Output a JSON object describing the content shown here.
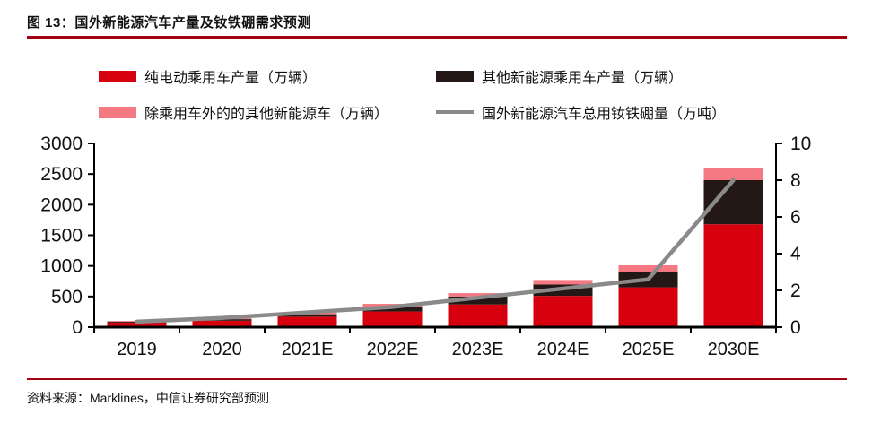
{
  "page": {
    "title": "图 13：国外新能源汽车产量及钕铁硼需求预测",
    "source": "资料来源：Marklines，中信证券研究部预测"
  },
  "colors": {
    "accent_rule": "#A30014",
    "bev_red": "#D7000F",
    "other_black": "#231815",
    "nonpv_pink": "#F47983",
    "line_gray": "#8A8A8A",
    "axis": "#000000",
    "text": "#111111"
  },
  "legend": {
    "items": [
      {
        "label": "纯电动乘用车产量（万辆）",
        "type": "bar",
        "color": "#D7000F"
      },
      {
        "label": "其他新能源乘用车产量（万辆）",
        "type": "bar",
        "color": "#231815"
      },
      {
        "label": "除乘用车外的的其他新能源车（万辆）",
        "type": "bar",
        "color": "#F47983"
      },
      {
        "label": "国外新能源汽车总用钕铁硼量（万吨）",
        "type": "line",
        "color": "#8A8A8A"
      }
    ]
  },
  "chart_data": {
    "type": "bar",
    "subtype": "stacked-bar-with-line",
    "title": "国外新能源汽车产量及钕铁硼需求预测",
    "categories": [
      "2019",
      "2020",
      "2021E",
      "2022E",
      "2023E",
      "2024E",
      "2025E",
      "2030E"
    ],
    "series": [
      {
        "name": "纯电动乘用车产量（万辆）",
        "type": "bar",
        "stack": "cars",
        "axis": "left",
        "color": "#D7000F",
        "values": [
          75,
          105,
          170,
          255,
          370,
          510,
          650,
          1680
        ]
      },
      {
        "name": "其他新能源乘用车产量（万辆）",
        "type": "bar",
        "stack": "cars",
        "axis": "left",
        "color": "#231815",
        "values": [
          15,
          25,
          40,
          80,
          130,
          185,
          250,
          720
        ]
      },
      {
        "name": "除乘用车外的的其他新能源车（万辆）",
        "type": "bar",
        "stack": "cars",
        "axis": "left",
        "color": "#F47983",
        "values": [
          12,
          15,
          25,
          45,
          55,
          75,
          110,
          190
        ]
      },
      {
        "name": "国外新能源汽车总用钕铁硼量（万吨）",
        "type": "line",
        "axis": "right",
        "color": "#8A8A8A",
        "values": [
          0.3,
          0.5,
          0.8,
          1.1,
          1.6,
          2.1,
          2.6,
          8.0
        ]
      }
    ],
    "left_axis": {
      "min": 0,
      "max": 3000,
      "step": 500,
      "tick_labels": [
        "0",
        "500",
        "1000",
        "1500",
        "2000",
        "2500",
        "3000"
      ]
    },
    "right_axis": {
      "min": 0,
      "max": 10,
      "step": 2,
      "tick_labels": [
        "0",
        "2",
        "4",
        "6",
        "8",
        "10"
      ]
    },
    "grid": false,
    "legend_position": "top"
  }
}
